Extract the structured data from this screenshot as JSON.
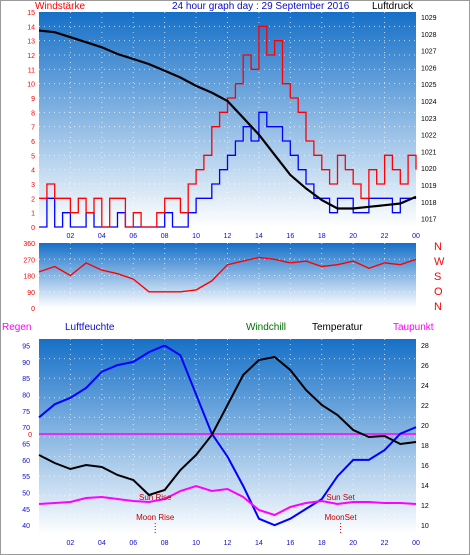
{
  "header": {
    "left_label": "Windstärke",
    "title": "24 hour graph day : 29 September 2016",
    "right_label": "Luftdruck"
  },
  "colors": {
    "wind": "#ff0000",
    "gust": "#0000ff",
    "pressure": "#000000",
    "humidity": "#0000ff",
    "temperature": "#000000",
    "dewpoint": "#ff00ff",
    "rain_zero": "#ff00ff",
    "background_top": "#1670c8",
    "background_bottom": "#ffffff",
    "windchill_label": "#007000"
  },
  "chart_data": [
    {
      "type": "line",
      "name": "wind-pressure",
      "x_ticks": [
        "02",
        "04",
        "06",
        "08",
        "10",
        "12",
        "14",
        "16",
        "18",
        "20",
        "22",
        "00"
      ],
      "y_left_ticks": [
        "0",
        "1",
        "2",
        "3",
        "4",
        "5",
        "6",
        "7",
        "8",
        "9",
        "10",
        "11",
        "12",
        "13",
        "14",
        "15"
      ],
      "y_right_ticks": [
        "1017",
        "1018",
        "1019",
        "1020",
        "1021",
        "1022",
        "1023",
        "1024",
        "1025",
        "1026",
        "1027",
        "1028",
        "1029"
      ],
      "y_left_range": [
        0,
        15
      ],
      "y_right_range": [
        1016.5,
        1029.3
      ],
      "series": [
        {
          "name": "Windstärke",
          "axis": "left",
          "x": [
            0,
            0.5,
            1,
            1.5,
            2,
            2.5,
            3,
            3.5,
            4,
            4.5,
            5,
            5.5,
            6,
            6.5,
            7,
            7.5,
            8,
            8.5,
            9,
            9.5,
            10,
            10.5,
            11,
            11.5,
            12,
            12.5,
            13,
            13.5,
            14,
            14.5,
            15,
            15.5,
            16,
            16.5,
            17,
            17.5,
            18,
            18.5,
            19,
            19.5,
            20,
            20.5,
            21,
            21.5,
            22,
            22.5,
            23,
            23.5,
            24
          ],
          "values": [
            2,
            3,
            2,
            2,
            1,
            2,
            1,
            2,
            0,
            2,
            2,
            0,
            1,
            0,
            0,
            1,
            2,
            2,
            1,
            3,
            4,
            5,
            7,
            8,
            9,
            10,
            12,
            11,
            14,
            12,
            13,
            10,
            9,
            8,
            6,
            5,
            4,
            3,
            5,
            4,
            3,
            2,
            4,
            3,
            5,
            4,
            3,
            5,
            4
          ],
          "gust_values": [
            0,
            2,
            0,
            1,
            0,
            0,
            1,
            0,
            0,
            0,
            1,
            0,
            0,
            0,
            0,
            0,
            1,
            0,
            0,
            1,
            2,
            2,
            3,
            4,
            5,
            6,
            7,
            6,
            8,
            7,
            7,
            6,
            5,
            4,
            3,
            2,
            2,
            1,
            2,
            2,
            1,
            1,
            2,
            2,
            2,
            1,
            2,
            2,
            2
          ]
        },
        {
          "name": "Luftdruck",
          "axis": "right",
          "x": [
            0,
            1,
            2,
            3,
            4,
            5,
            6,
            7,
            8,
            9,
            10,
            11,
            12,
            13,
            14,
            15,
            16,
            17,
            18,
            19,
            20,
            21,
            22,
            23,
            24
          ],
          "values": [
            1028.2,
            1028.1,
            1027.8,
            1027.5,
            1027.2,
            1026.8,
            1026.5,
            1026.2,
            1025.8,
            1025.4,
            1024.9,
            1024.5,
            1024.0,
            1023.0,
            1022.0,
            1020.8,
            1019.6,
            1018.8,
            1018.1,
            1017.6,
            1017.6,
            1017.7,
            1017.8,
            1017.9,
            1018.3
          ]
        }
      ]
    },
    {
      "type": "line",
      "name": "wind-direction",
      "y_left_ticks": [
        "0",
        "90",
        "180",
        "270",
        "360"
      ],
      "y_right_labels": [
        "N",
        "W",
        "S",
        "O",
        "N"
      ],
      "y_range": [
        0,
        360
      ],
      "x": [
        0,
        1,
        2,
        3,
        4,
        5,
        6,
        7,
        8,
        9,
        10,
        11,
        12,
        13,
        14,
        15,
        16,
        17,
        18,
        19,
        20,
        21,
        22,
        23,
        24
      ],
      "values": [
        200,
        230,
        180,
        250,
        210,
        190,
        160,
        90,
        90,
        90,
        100,
        150,
        240,
        260,
        280,
        270,
        250,
        260,
        230,
        240,
        260,
        220,
        250,
        240,
        270
      ]
    },
    {
      "type": "line",
      "name": "temperature-humidity",
      "header_labels": [
        "Regen",
        "Luftfeuchte",
        "Windchill",
        "Temperatur",
        "Taupunkt"
      ],
      "x_ticks": [
        "02",
        "04",
        "06",
        "08",
        "10",
        "12",
        "14",
        "16",
        "18",
        "20",
        "22",
        "00"
      ],
      "y_left_ticks": [
        "40",
        "45",
        "50",
        "55",
        "60",
        "65",
        "70",
        "75",
        "80",
        "85",
        "90",
        "95"
      ],
      "y_right_ticks": [
        "10",
        "12",
        "14",
        "16",
        "18",
        "20",
        "22",
        "24",
        "26",
        "28"
      ],
      "rain_zero_label": "0",
      "y_left_range": [
        37,
        97
      ],
      "y_right_range": [
        9,
        28.6
      ],
      "annotations": [
        {
          "label": "Sun Rise",
          "x": 7.4,
          "level": "upper"
        },
        {
          "label": "Moon Rise",
          "x": 7.4,
          "level": "lower"
        },
        {
          "label": "Sun Set",
          "x": 19.2,
          "level": "upper"
        },
        {
          "label": "MoonSet",
          "x": 19.2,
          "level": "lower"
        }
      ],
      "series": [
        {
          "name": "Luftfeuchte",
          "axis": "left",
          "x": [
            0,
            1,
            2,
            3,
            4,
            5,
            6,
            7,
            8,
            9,
            10,
            11,
            12,
            13,
            14,
            15,
            16,
            17,
            18,
            19,
            20,
            21,
            22,
            23,
            24
          ],
          "values": [
            73,
            77,
            79,
            82,
            87,
            89,
            90,
            93,
            95,
            92,
            80,
            68,
            61,
            52,
            42,
            40,
            42,
            45,
            48,
            55,
            60,
            60,
            63,
            68,
            70
          ]
        },
        {
          "name": "Temperatur",
          "axis": "right",
          "x": [
            0,
            1,
            2,
            3,
            4,
            5,
            6,
            7,
            8,
            9,
            10,
            11,
            12,
            13,
            14,
            15,
            16,
            17,
            18,
            19,
            20,
            21,
            22,
            23,
            24
          ],
          "values": [
            17,
            16.2,
            15.6,
            16,
            15.8,
            15,
            14.5,
            13,
            13.5,
            15.5,
            17,
            19,
            22,
            25,
            26.5,
            26.8,
            25.5,
            23.5,
            22,
            21,
            19.5,
            18.8,
            18.9,
            18.1,
            18.3
          ]
        },
        {
          "name": "Taupunkt",
          "axis": "right",
          "x": [
            0,
            1,
            2,
            3,
            4,
            5,
            6,
            7,
            8,
            9,
            10,
            11,
            12,
            13,
            14,
            15,
            16,
            17,
            18,
            19,
            20,
            21,
            22,
            23,
            24
          ],
          "values": [
            12.1,
            12.2,
            12.3,
            12.7,
            12.8,
            12.6,
            12.4,
            12.3,
            12.6,
            13.4,
            13.9,
            13.4,
            13.6,
            12.8,
            11.5,
            11.0,
            11.8,
            12.2,
            12.4,
            12.1,
            12.3,
            12.3,
            12.2,
            12.2,
            12.1
          ]
        }
      ]
    }
  ]
}
